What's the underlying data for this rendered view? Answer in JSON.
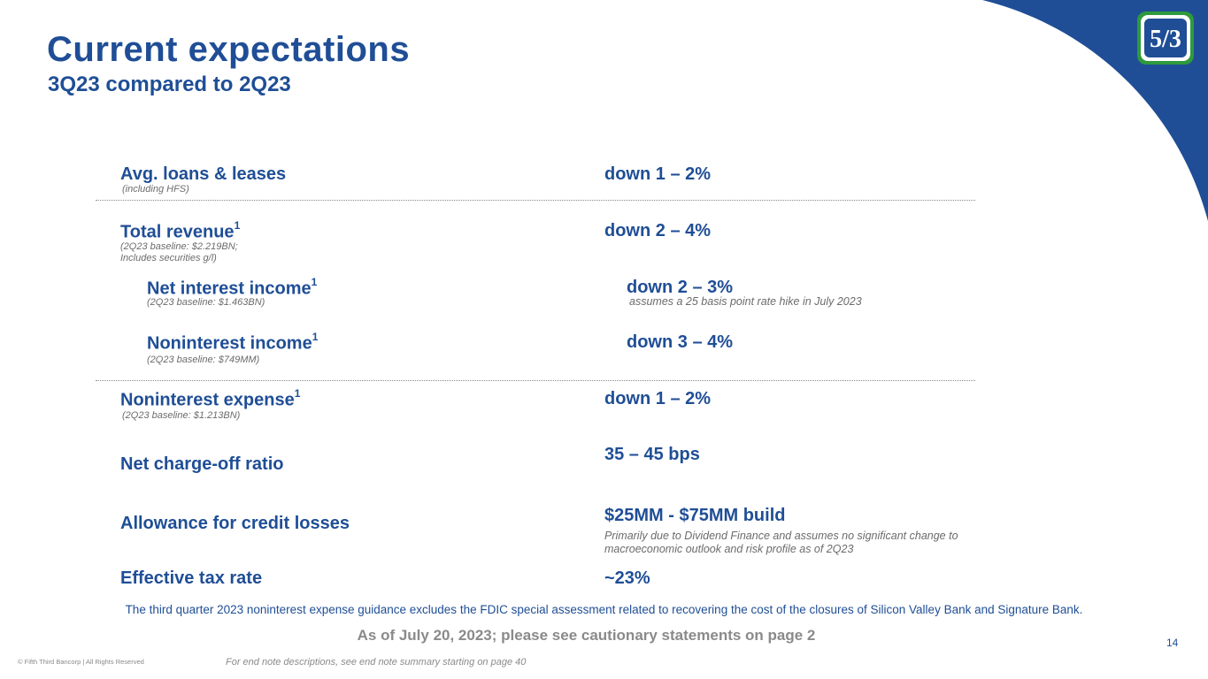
{
  "header": {
    "title": "Current expectations",
    "subtitle": "3Q23 compared to 2Q23",
    "logo_text": "5/3",
    "brand_color": "#1f4e96",
    "logo_green": "#2e9a3d"
  },
  "rows": {
    "loans": {
      "label": "Avg. loans & leases",
      "note": "(including HFS)",
      "value": "down 1 – 2%"
    },
    "revenue": {
      "label": "Total revenue",
      "sup": "1",
      "note_line1": "(2Q23 baseline: $2.219BN;",
      "note_line2": "Includes securities g/l)",
      "value": "down 2 – 4%"
    },
    "nii": {
      "label": "Net interest income",
      "sup": "1",
      "note": "(2Q23 baseline: $1.463BN)",
      "value": "down 2 – 3%",
      "value_note": "assumes a 25 basis point rate hike in July 2023"
    },
    "nonint_income": {
      "label": "Noninterest income",
      "sup": "1",
      "note": "(2Q23 baseline: $749MM)",
      "value": "down 3 – 4%"
    },
    "nonint_expense": {
      "label": "Noninterest expense",
      "sup": "1",
      "note": "(2Q23 baseline: $1.213BN)",
      "value": "down 1 – 2%"
    },
    "nco": {
      "label": "Net charge-off ratio",
      "value": "35 – 45 bps"
    },
    "allowance": {
      "label": "Allowance for credit losses",
      "value": "$25MM - $75MM build",
      "value_note": "Primarily due to Dividend Finance and assumes no significant change to macroeconomic outlook and risk profile as of 2Q23"
    },
    "tax": {
      "label": "Effective tax rate",
      "value": "~23%"
    }
  },
  "footer": {
    "guidance_note": "The third quarter 2023 noninterest expense guidance excludes the FDIC special assessment related to recovering the cost of the closures of Silicon Valley Bank and Signature Bank.",
    "as_of": "As of July 20, 2023; please see cautionary statements on page 2",
    "page_number": "14",
    "copyright": "© Fifth Third Bancorp | All Rights Reserved",
    "end_note": "For end note descriptions, see end note summary starting on page 40"
  }
}
